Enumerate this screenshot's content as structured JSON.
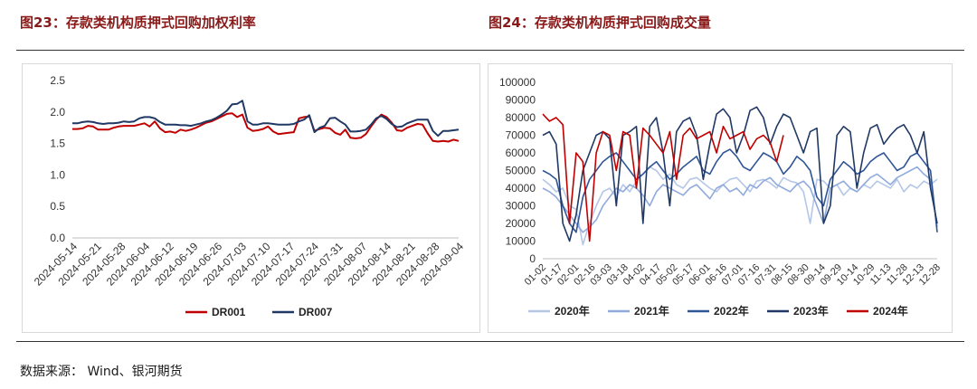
{
  "page": {
    "title_left": "图23：存款类机构质押式回购加权利率",
    "title_right": "图24：存款类机构质押式回购成交量",
    "source": "数据来源： Wind、银河期货"
  },
  "chart_data": [
    {
      "type": "line",
      "title": "图23：存款类机构质押式回购加权利率",
      "ylim": [
        0,
        2.5
      ],
      "yticks": [
        "0.0",
        "0.5",
        "1.0",
        "1.5",
        "2.0",
        "2.5"
      ],
      "xticks": [
        "2024-05-14",
        "2024-05-21",
        "2024-05-28",
        "2024-06-04",
        "2024-06-12",
        "2024-06-19",
        "2024-06-26",
        "2024-07-03",
        "2024-07-10",
        "2024-07-17",
        "2024-07-24",
        "2024-07-31",
        "2024-08-07",
        "2024-08-14",
        "2024-08-21",
        "2024-08-28",
        "2024-09-04"
      ],
      "grid": false,
      "legend_position": "bottom",
      "series": [
        {
          "name": "DR001",
          "color": "#c00000",
          "values": [
            1.73,
            1.73,
            1.74,
            1.78,
            1.77,
            1.72,
            1.72,
            1.72,
            1.75,
            1.77,
            1.78,
            1.78,
            1.78,
            1.8,
            1.82,
            1.77,
            1.85,
            1.74,
            1.68,
            1.69,
            1.67,
            1.72,
            1.7,
            1.72,
            1.75,
            1.79,
            1.83,
            1.85,
            1.89,
            1.93,
            1.97,
            1.98,
            1.92,
            1.96,
            1.75,
            1.7,
            1.71,
            1.73,
            1.77,
            1.69,
            1.65,
            1.66,
            1.67,
            1.68,
            1.9,
            1.92,
            1.93,
            1.7,
            1.73,
            1.75,
            1.74,
            1.67,
            1.64,
            1.72,
            1.59,
            1.58,
            1.59,
            1.65,
            1.77,
            1.88,
            1.96,
            1.92,
            1.83,
            1.71,
            1.7,
            1.75,
            1.78,
            1.81,
            1.8,
            1.66,
            1.54,
            1.53,
            1.54,
            1.53,
            1.56,
            1.54
          ]
        },
        {
          "name": "DR007",
          "color": "#203864",
          "values": [
            1.82,
            1.82,
            1.84,
            1.85,
            1.84,
            1.82,
            1.81,
            1.82,
            1.82,
            1.83,
            1.85,
            1.84,
            1.85,
            1.9,
            1.92,
            1.92,
            1.9,
            1.84,
            1.8,
            1.8,
            1.8,
            1.79,
            1.79,
            1.78,
            1.8,
            1.82,
            1.85,
            1.87,
            1.91,
            1.96,
            2.02,
            2.12,
            2.13,
            2.18,
            1.85,
            1.8,
            1.8,
            1.82,
            1.82,
            1.81,
            1.8,
            1.8,
            1.8,
            1.81,
            1.85,
            1.88,
            1.95,
            1.68,
            1.75,
            1.78,
            1.9,
            1.91,
            1.85,
            1.8,
            1.69,
            1.69,
            1.7,
            1.72,
            1.8,
            1.9,
            1.94,
            1.89,
            1.81,
            1.76,
            1.77,
            1.82,
            1.85,
            1.88,
            1.88,
            1.88,
            1.7,
            1.62,
            1.7,
            1.7,
            1.71,
            1.72
          ]
        }
      ]
    },
    {
      "type": "line",
      "title": "图24：存款类机构质押式回购成交量",
      "ylim": [
        0,
        100000
      ],
      "yticks": [
        "0",
        "10000",
        "20000",
        "30000",
        "40000",
        "50000",
        "60000",
        "70000",
        "80000",
        "90000",
        "100000"
      ],
      "xticks": [
        "01-02",
        "01-17",
        "02-01",
        "02-16",
        "03-03",
        "03-18",
        "04-02",
        "04-17",
        "05-02",
        "05-17",
        "06-01",
        "06-16",
        "07-01",
        "07-16",
        "07-31",
        "08-15",
        "08-30",
        "09-14",
        "09-29",
        "10-14",
        "10-29",
        "11-13",
        "11-28",
        "12-13",
        "12-28"
      ],
      "grid": false,
      "legend_position": "bottom",
      "series": [
        {
          "name": "2020年",
          "color": "#b4c7e7",
          "values": [
            45000,
            42000,
            38000,
            40000,
            30000,
            28000,
            8000,
            20000,
            30000,
            38000,
            40000,
            35000,
            42000,
            38000,
            44000,
            48000,
            52000,
            50000,
            45000,
            48000,
            42000,
            40000,
            45000,
            46000,
            43000,
            40000,
            38000,
            42000,
            45000,
            46000,
            42000,
            38000,
            44000,
            45000,
            43000,
            40000,
            46000,
            44000,
            43000,
            38000,
            20000,
            45000,
            44000,
            40000,
            42000,
            36000,
            40000,
            38000,
            42000,
            40000,
            44000,
            42000,
            40000,
            45000,
            38000,
            42000,
            40000,
            44000,
            42000,
            45000
          ]
        },
        {
          "name": "2021年",
          "color": "#8faadc",
          "values": [
            40000,
            38000,
            35000,
            30000,
            25000,
            20000,
            15000,
            18000,
            22000,
            30000,
            35000,
            40000,
            38000,
            42000,
            40000,
            36000,
            30000,
            38000,
            42000,
            40000,
            38000,
            36000,
            40000,
            42000,
            38000,
            34000,
            40000,
            42000,
            38000,
            40000,
            36000,
            42000,
            40000,
            44000,
            46000,
            42000,
            40000,
            38000,
            42000,
            44000,
            40000,
            30000,
            20000,
            40000,
            42000,
            44000,
            40000,
            38000,
            42000,
            46000,
            48000,
            45000,
            42000,
            46000,
            48000,
            50000,
            52000,
            48000,
            45000,
            18000
          ]
        },
        {
          "name": "2022年",
          "color": "#2f5597",
          "values": [
            50000,
            48000,
            45000,
            30000,
            20000,
            15000,
            35000,
            45000,
            50000,
            55000,
            58000,
            60000,
            55000,
            50000,
            45000,
            48000,
            52000,
            55000,
            50000,
            45000,
            48000,
            52000,
            55000,
            58000,
            50000,
            48000,
            55000,
            60000,
            62000,
            58000,
            52000,
            50000,
            55000,
            60000,
            58000,
            55000,
            48000,
            52000,
            58000,
            55000,
            50000,
            35000,
            30000,
            45000,
            50000,
            55000,
            52000,
            48000,
            50000,
            55000,
            58000,
            60000,
            55000,
            50000,
            52000,
            58000,
            60000,
            55000,
            50000,
            15000
          ]
        },
        {
          "name": "2023年",
          "color": "#203864",
          "values": [
            70000,
            72000,
            65000,
            20000,
            10000,
            25000,
            50000,
            60000,
            70000,
            72000,
            68000,
            30000,
            70000,
            72000,
            75000,
            20000,
            75000,
            80000,
            60000,
            30000,
            72000,
            78000,
            80000,
            70000,
            45000,
            65000,
            82000,
            85000,
            80000,
            60000,
            70000,
            84000,
            86000,
            80000,
            65000,
            75000,
            82000,
            80000,
            70000,
            60000,
            72000,
            74000,
            20000,
            30000,
            70000,
            75000,
            72000,
            40000,
            60000,
            74000,
            76000,
            65000,
            70000,
            74000,
            76000,
            70000,
            60000,
            72000,
            40000,
            20000
          ]
        },
        {
          "name": "2024年",
          "color": "#c00000",
          "values": [
            82000,
            78000,
            80000,
            76000,
            20000,
            60000,
            55000,
            10000,
            60000,
            72000,
            70000,
            50000,
            72000,
            70000,
            40000,
            74000,
            70000,
            65000,
            60000,
            72000,
            45000,
            70000,
            74000,
            68000,
            70000,
            72000,
            60000,
            75000,
            68000,
            70000,
            72000,
            62000,
            68000,
            70000,
            66000,
            55000,
            70000
          ]
        }
      ]
    }
  ]
}
